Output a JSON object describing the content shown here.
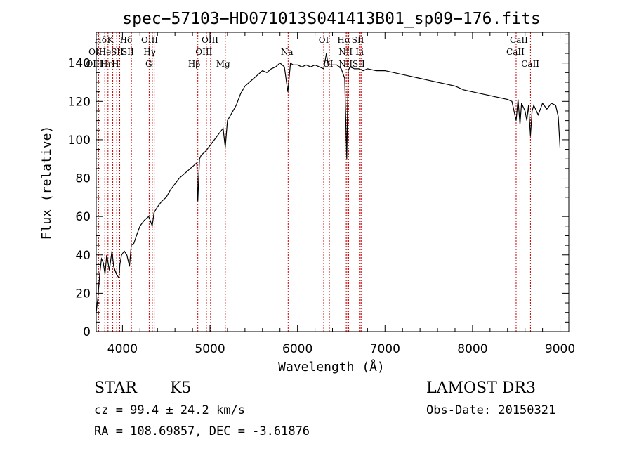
{
  "chart_data": {
    "type": "line",
    "title": "spec−57103−HD071013S041413B01_sp09−176.fits",
    "xlabel": "Wavelength (Å)",
    "ylabel": "Flux (relative)",
    "xlim": [
      3700,
      9100
    ],
    "ylim": [
      0,
      156
    ],
    "xticks": [
      4000,
      5000,
      6000,
      7000,
      8000,
      9000
    ],
    "yticks": [
      0,
      20,
      40,
      60,
      80,
      100,
      120,
      140
    ],
    "grid": false,
    "series": [
      {
        "x": [
          3700,
          3720,
          3740,
          3760,
          3780,
          3800,
          3820,
          3850,
          3880,
          3900,
          3930,
          3960,
          3970,
          3990,
          4020,
          4050,
          4080,
          4100,
          4130,
          4160,
          4200,
          4250,
          4300,
          4340,
          4360,
          4400,
          4450,
          4500,
          4550,
          4600,
          4650,
          4700,
          4750,
          4800,
          4850,
          4861,
          4880,
          4900,
          4950,
          5000,
          5050,
          5100,
          5150,
          5175,
          5200,
          5250,
          5300,
          5350,
          5400,
          5450,
          5500,
          5550,
          5600,
          5650,
          5700,
          5750,
          5800,
          5850,
          5890,
          5920,
          5950,
          6000,
          6050,
          6100,
          6150,
          6200,
          6250,
          6300,
          6330,
          6350,
          6400,
          6450,
          6500,
          6540,
          6563,
          6580,
          6600,
          6650,
          6700,
          6750,
          6800,
          6900,
          7000,
          7100,
          7200,
          7300,
          7400,
          7500,
          7600,
          7700,
          7800,
          7900,
          8000,
          8100,
          8200,
          8300,
          8400,
          8450,
          8498,
          8520,
          8542,
          8560,
          8600,
          8620,
          8640,
          8662,
          8680,
          8700,
          8750,
          8800,
          8850,
          8900,
          8950,
          8980,
          9000
        ],
        "y": [
          10,
          18,
          30,
          38,
          36,
          30,
          40,
          32,
          42,
          34,
          30,
          28,
          35,
          40,
          42,
          40,
          34,
          45,
          46,
          50,
          55,
          58,
          60,
          55,
          62,
          65,
          68,
          70,
          74,
          77,
          80,
          82,
          84,
          86,
          88,
          68,
          90,
          92,
          94,
          97,
          100,
          103,
          106,
          96,
          110,
          114,
          118,
          124,
          128,
          130,
          132,
          134,
          136,
          135,
          137,
          138,
          140,
          138,
          125,
          140,
          139,
          139,
          138,
          139,
          138,
          139,
          138,
          137,
          145,
          139,
          139,
          139,
          137,
          132,
          90,
          136,
          138,
          137,
          137,
          136,
          137,
          136,
          136,
          135,
          134,
          133,
          132,
          131,
          130,
          129,
          128,
          126,
          125,
          124,
          123,
          122,
          121,
          120,
          110,
          121,
          108,
          119,
          115,
          110,
          118,
          102,
          115,
          118,
          113,
          119,
          116,
          119,
          118,
          112,
          96
        ]
      }
    ],
    "line_labels": [
      {
        "text": "Hδ",
        "wl": 3750,
        "row": 0
      },
      {
        "text": "K",
        "wl": 3860,
        "row": 0
      },
      {
        "text": "Hδ",
        "wl": 4040,
        "row": 0
      },
      {
        "text": "OIII",
        "wl": 4310,
        "row": 0
      },
      {
        "text": "OIII",
        "wl": 5000,
        "row": 0
      },
      {
        "text": "OI",
        "wl": 6300,
        "row": 0
      },
      {
        "text": "Hα",
        "wl": 6530,
        "row": 0
      },
      {
        "text": "SII",
        "wl": 6690,
        "row": 0
      },
      {
        "text": "CaII",
        "wl": 8530,
        "row": 0
      },
      {
        "text": "OII",
        "wl": 3690,
        "row": 1
      },
      {
        "text": "He",
        "wl": 3800,
        "row": 1
      },
      {
        "text": "SII",
        "wl": 3940,
        "row": 1
      },
      {
        "text": "SII",
        "wl": 4060,
        "row": 1
      },
      {
        "text": "Hγ",
        "wl": 4310,
        "row": 1
      },
      {
        "text": "OIII",
        "wl": 4930,
        "row": 1
      },
      {
        "text": "Na",
        "wl": 5880,
        "row": 1
      },
      {
        "text": "NII",
        "wl": 6550,
        "row": 1
      },
      {
        "text": "Li",
        "wl": 6710,
        "row": 1
      },
      {
        "text": "CaII",
        "wl": 8490,
        "row": 1
      },
      {
        "text": "OIII",
        "wl": 3680,
        "row": 2
      },
      {
        "text": "Hη",
        "wl": 3820,
        "row": 2
      },
      {
        "text": "H",
        "wl": 3920,
        "row": 2
      },
      {
        "text": "G",
        "wl": 4300,
        "row": 2
      },
      {
        "text": "Hβ",
        "wl": 4820,
        "row": 2
      },
      {
        "text": "Mg",
        "wl": 5150,
        "row": 2
      },
      {
        "text": "OI",
        "wl": 6350,
        "row": 2
      },
      {
        "text": "NII",
        "wl": 6550,
        "row": 2
      },
      {
        "text": "SII",
        "wl": 6700,
        "row": 2
      },
      {
        "text": "CaII",
        "wl": 8660,
        "row": 2
      }
    ],
    "line_markers": [
      3727,
      3798,
      3835,
      3889,
      3934,
      3969,
      4102,
      4305,
      4341,
      4363,
      4861,
      4959,
      5007,
      5175,
      5893,
      6300,
      6364,
      6548,
      6563,
      6584,
      6707,
      6717,
      6731,
      8498,
      8542,
      8662
    ],
    "marker_color": "#cc0000"
  },
  "info": {
    "object": "STAR",
    "subclass": "K5",
    "survey": "LAMOST DR3",
    "redshift": "cz = 99.4 ± 24.2 km/s",
    "obs_date": "Obs-Date: 20150321",
    "coords": "RA = 108.69857, DEC =  -3.61876"
  }
}
